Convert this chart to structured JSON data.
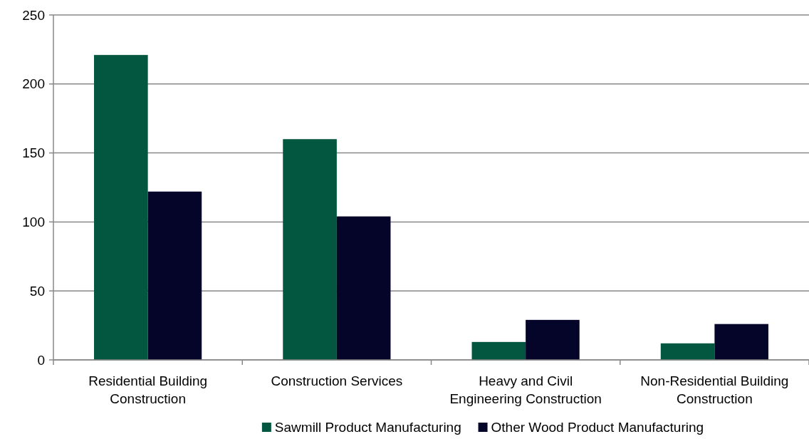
{
  "chart_data": {
    "type": "bar",
    "categories": [
      "Residential Building Construction",
      "Construction Services",
      "Heavy and Civil Engineering Construction",
      "Non-Residential Building Construction"
    ],
    "series": [
      {
        "name": "Sawmill Product Manufacturing",
        "color": "#03563f",
        "values": [
          221,
          160,
          13,
          12
        ]
      },
      {
        "name": "Other Wood Product Manufacturing",
        "color": "#05052a",
        "values": [
          122,
          104,
          29,
          26
        ]
      }
    ],
    "ylim": [
      0,
      250
    ],
    "yticks": [
      0,
      50,
      100,
      150,
      200,
      250
    ],
    "grid": "y",
    "legend": "bottom"
  }
}
